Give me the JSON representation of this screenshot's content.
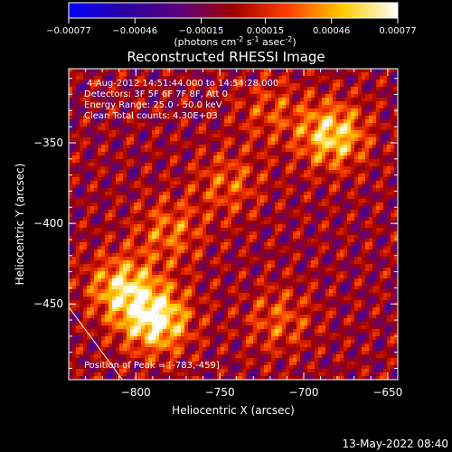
{
  "chart_data": {
    "type": "heatmap",
    "title": "Reconstructed RHESSI Image",
    "xlabel": "Heliocentric X (arcsec)",
    "ylabel": "Heliocentric Y (arcsec)",
    "xlim": [
      -840,
      -644
    ],
    "ylim": [
      -497,
      -304
    ],
    "x_ticks": [
      -800,
      -750,
      -700,
      -650
    ],
    "y_ticks": [
      -350,
      -400,
      -450
    ],
    "colorbar": {
      "ticks": [
        -0.00077,
        -0.00046,
        -0.00015,
        0.00015,
        0.00046,
        0.00077
      ],
      "tick_labels": [
        "-0.00077",
        "-0.00046",
        "-0.00015",
        "0.00015",
        "0.00046",
        "0.00077"
      ],
      "unit_parts": [
        "(photons cm",
        "-2",
        " s",
        "-1",
        " asec",
        "-2",
        ")"
      ],
      "colors": [
        "#0000ff",
        "#2a00a0",
        "#5a0080",
        "#a00000",
        "#ff4000",
        "#ffcc00",
        "#ffffff"
      ]
    },
    "annotations": [
      "4-Aug-2012 14:51:44.000 to 14:54:28.000",
      "Detectors: 3F 5F 6F 7F 8F, Att 0",
      "Energy Range: 25.0 - 50.0 keV",
      "Clean    Total counts: 4.30E+03"
    ],
    "peak_label": "Position of Peak = [-783,-459]",
    "peak": [
      -783,
      -459
    ],
    "sources": [
      {
        "x": -683,
        "y": -345,
        "intensity": 0.00065
      },
      {
        "x": -788,
        "y": -460,
        "intensity": 0.00077
      },
      {
        "x": -808,
        "y": -440,
        "intensity": 0.0006
      },
      {
        "x": -780,
        "y": -405,
        "intensity": 0.00035
      },
      {
        "x": -745,
        "y": -375,
        "intensity": 0.0003
      },
      {
        "x": -715,
        "y": -460,
        "intensity": 0.0003
      },
      {
        "x": -720,
        "y": -330,
        "intensity": 0.00025
      }
    ],
    "limb_line": [
      [
        -840,
        -452
      ],
      [
        -808,
        -497
      ]
    ],
    "grid": false
  },
  "timestamp": "13-May-2022 08:40"
}
